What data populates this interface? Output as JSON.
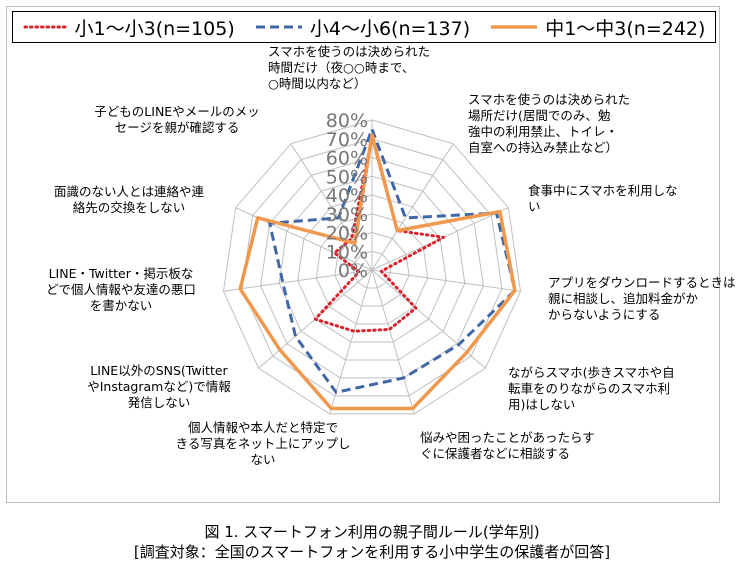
{
  "chart_data": {
    "type": "radar",
    "categories": [
      [
        "スマホを使うのは決められた",
        "時間だけ（夜○○時まで、",
        "○時間以内など）"
      ],
      [
        "スマホを使うのは決められた",
        "場所だけ(居間でのみ、勉",
        "強中の利用禁止、トイレ・",
        "自室への持込み禁止など）"
      ],
      [
        "食事中にスマホを利用しな",
        "い"
      ],
      [
        "アプリをダウンロードするときは",
        "親に相談し、追加料金がか",
        "からないようにする"
      ],
      [
        "ながらスマホ(歩きスマホや自",
        "転車をのりながらのスマホ利",
        "用)はしない"
      ],
      [
        "悩みや困ったことがあったらす",
        "ぐに保護者などに相談する"
      ],
      [
        "個人情報や本人だと特定で",
        "きる写真をネット上にアップし",
        "ない"
      ],
      [
        "LINE以外のSNS(Twitter",
        "やInstagramなど)で情報",
        "発信しない"
      ],
      [
        "LINE・Twitter・掲示板な",
        "どで個人情報や友達の悪口",
        "を書かない"
      ],
      [
        "面識のない人とは連絡や連",
        "絡先の交換をしない"
      ],
      [
        "子どものLINEやメールのメッ",
        "セージを親が確認する"
      ]
    ],
    "ticks": [
      "0%",
      "10%",
      "20%",
      "30%",
      "40%",
      "50%",
      "60%",
      "70%",
      "80%"
    ],
    "rmax": 80,
    "series": [
      {
        "name": "小1～小3(n=105)",
        "color": "#d9232d",
        "style": "dotted",
        "values": [
          71,
          25,
          42,
          5,
          31,
          33,
          34,
          40,
          7,
          22,
          20
        ]
      },
      {
        "name": "小4～小6(n=137)",
        "color": "#3f67a8",
        "style": "dashed",
        "values": [
          75,
          33,
          73,
          77,
          61,
          60,
          68,
          54,
          48,
          60,
          33
        ]
      },
      {
        "name": "中1～中3(n=242)",
        "color": "#f0994e",
        "style": "solid",
        "values": [
          72,
          25,
          75,
          77,
          67,
          77,
          77,
          65,
          71,
          67,
          17
        ]
      }
    ]
  },
  "caption": {
    "line1": "図 1. スマートフォン利用の親子間ルール(学年別)",
    "line2": "[調査対象：全国のスマートフォンを利用する小中学生の保護者が回答]"
  }
}
